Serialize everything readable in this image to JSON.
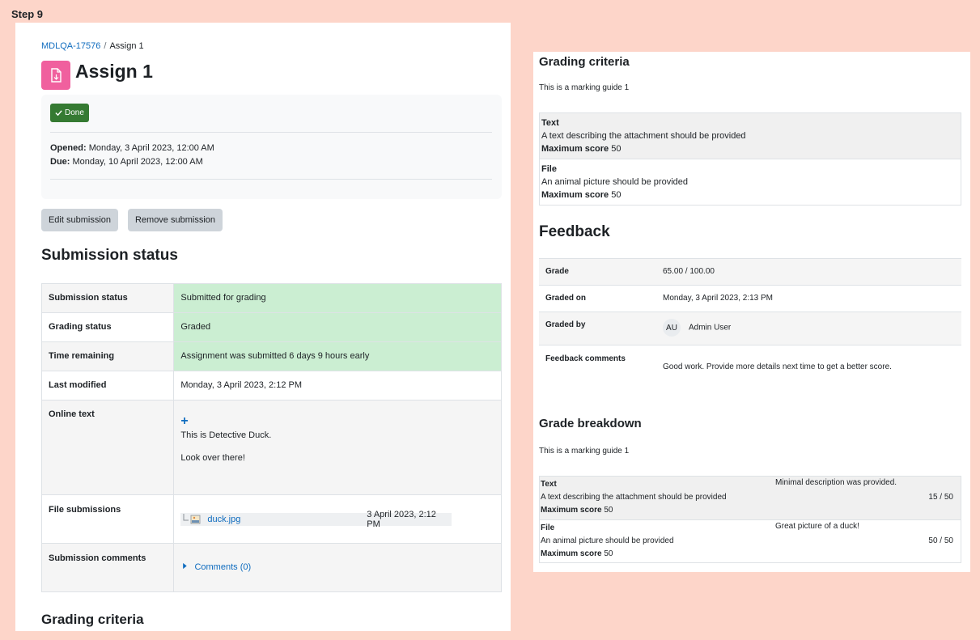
{
  "step_label": "Step 9",
  "breadcrumb": {
    "course": "MDLQA-17576",
    "current": "Assign 1"
  },
  "page_title": "Assign 1",
  "activity_icon": "assignment-icon",
  "completion": {
    "done_label": "Done"
  },
  "dates": {
    "opened_label": "Opened:",
    "opened_value": "Monday, 3 April 2023, 12:00 AM",
    "due_label": "Due:",
    "due_value": "Monday, 10 April 2023, 12:00 AM"
  },
  "buttons": {
    "edit": "Edit submission",
    "remove": "Remove submission"
  },
  "submission_status": {
    "title": "Submission status",
    "rows": [
      {
        "label": "Submission status",
        "value": "Submitted for grading"
      },
      {
        "label": "Grading status",
        "value": "Graded"
      },
      {
        "label": "Time remaining",
        "value": "Assignment was submitted 6 days 9 hours early"
      },
      {
        "label": "Last modified",
        "value": "Monday, 3 April 2023, 2:12 PM"
      },
      {
        "label": "Online text",
        "value_line1": "This is Detective Duck.",
        "value_line2": "Look over there!"
      },
      {
        "label": "File submissions",
        "file_name": "duck.jpg",
        "file_date": "3 April 2023, 2:12 PM"
      },
      {
        "label": "Submission comments",
        "comments_link": "Comments (0)"
      }
    ]
  },
  "grading_criteria_left_title": "Grading criteria",
  "right": {
    "grading_criteria": {
      "title": "Grading criteria",
      "description": "This is a marking guide 1",
      "criteria": [
        {
          "name": "Text",
          "description": "A text describing the attachment should be provided",
          "max_label": "Maximum score",
          "max_value": "50"
        },
        {
          "name": "File",
          "description": "An animal picture should be provided",
          "max_label": "Maximum score",
          "max_value": "50"
        }
      ]
    },
    "feedback": {
      "title": "Feedback",
      "grade_label": "Grade",
      "grade_value": "65.00 / 100.00",
      "graded_on_label": "Graded on",
      "graded_on_value": "Monday, 3 April 2023, 2:13 PM",
      "graded_by_label": "Graded by",
      "grader_initials": "AU",
      "grader_name": "Admin User",
      "comments_label": "Feedback comments",
      "comments_value": "Good work. Provide more details next time to get a better score."
    },
    "grade_breakdown": {
      "title": "Grade breakdown",
      "description": "This is a marking guide 1",
      "rows": [
        {
          "name": "Text",
          "description": "A text describing the attachment should be provided",
          "max_label": "Maximum score",
          "max_value": "50",
          "remark": "Minimal description was provided.",
          "score": "15 / 50"
        },
        {
          "name": "File",
          "description": "An animal picture should be provided",
          "max_label": "Maximum score",
          "max_value": "50",
          "remark": "Great picture of a duck!",
          "score": "50 / 50"
        }
      ]
    }
  }
}
